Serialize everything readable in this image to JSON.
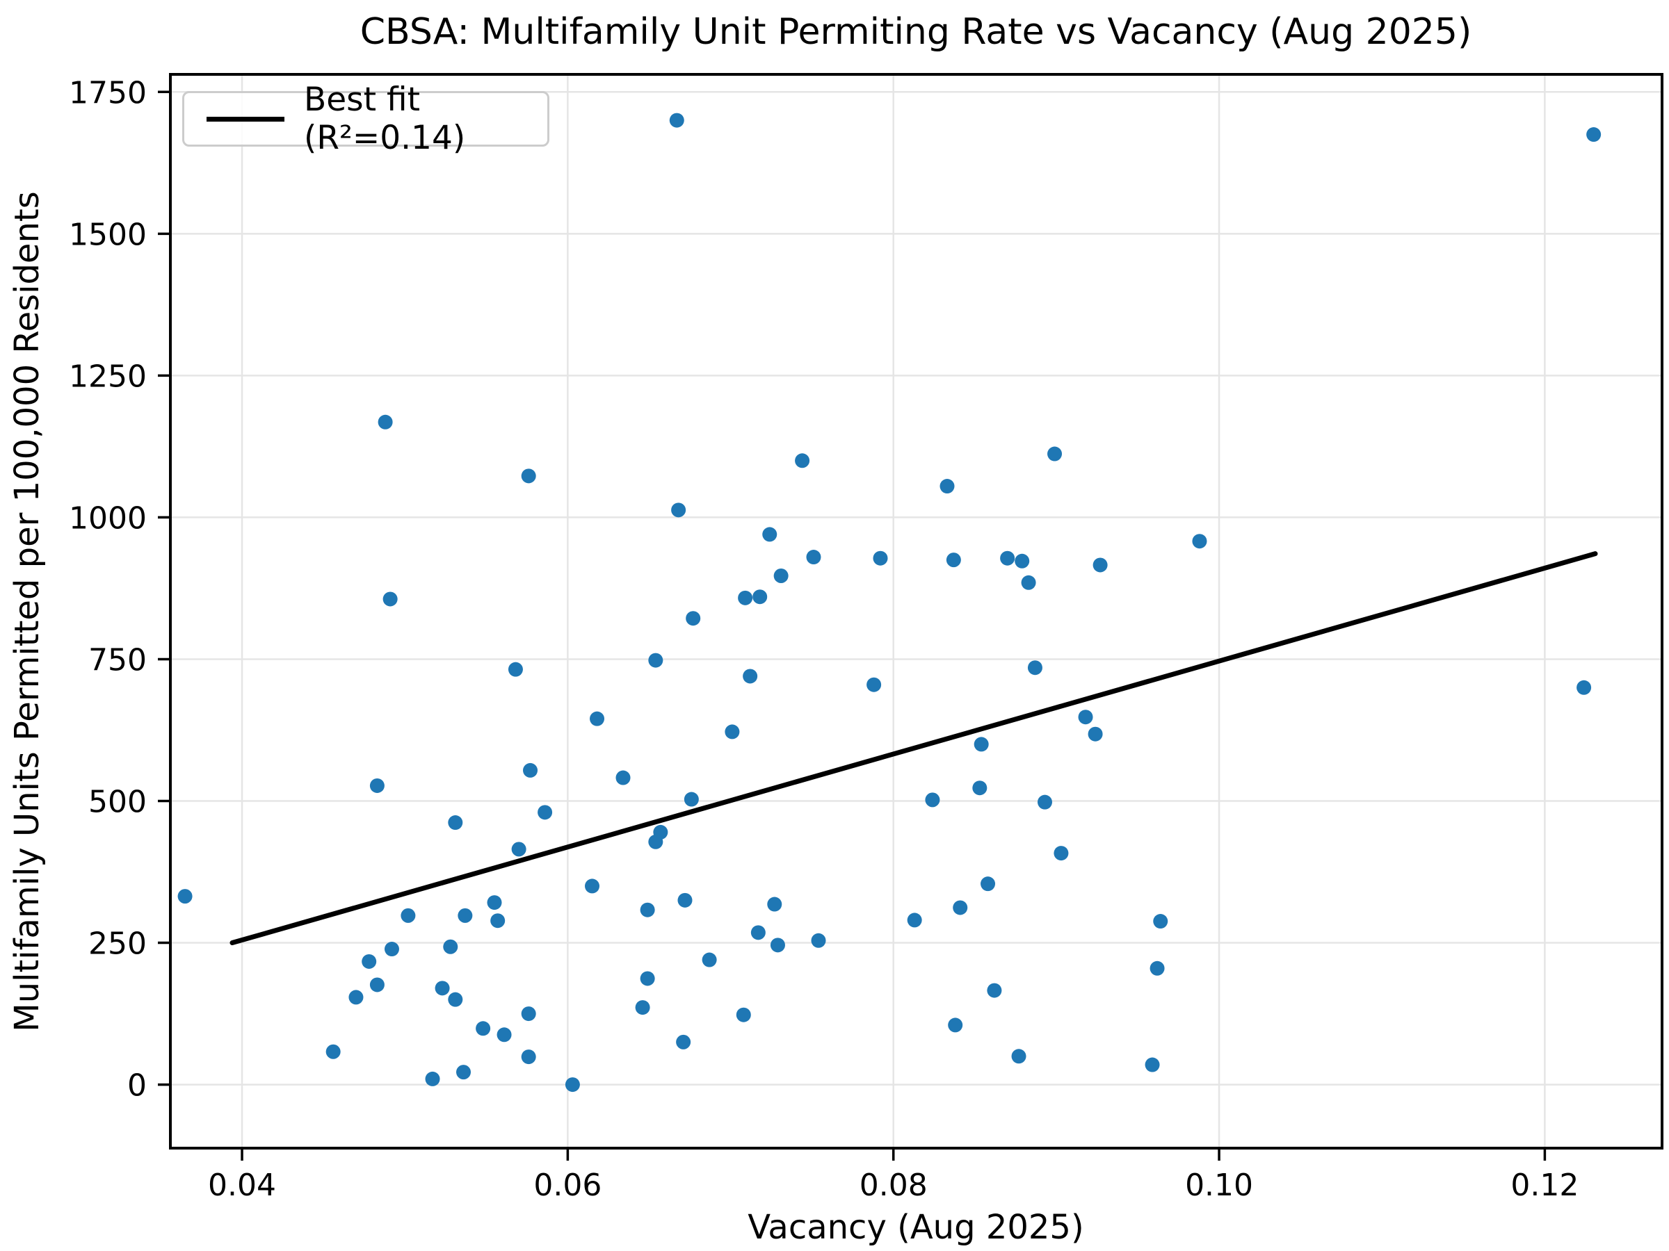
{
  "chart_data": {
    "type": "scatter",
    "title": "CBSA: Multifamily Unit Permiting Rate vs Vacancy (Aug 2025)",
    "xlabel": "Vacancy (Aug 2025)",
    "ylabel": "Multifamily Units Permitted per 100,000 Residents",
    "xlim": [
      0.0356,
      0.1272
    ],
    "ylim": [
      -112,
      1781
    ],
    "grid": true,
    "legend_position": "upper left",
    "x_ticks": [
      0.04,
      0.06,
      0.08,
      0.1,
      0.12
    ],
    "x_tick_labels": [
      "0.04",
      "0.06",
      "0.08",
      "0.10",
      "0.12"
    ],
    "y_ticks": [
      0,
      250,
      500,
      750,
      1000,
      1250,
      1500,
      1750
    ],
    "y_tick_labels": [
      "0",
      "250",
      "500",
      "750",
      "1000",
      "1250",
      "1500",
      "1750"
    ],
    "colors": {
      "point": "#1f77b4",
      "line": "#000000",
      "grid": "#e5e5e5",
      "spine": "#000000"
    },
    "marker_radius": 10.5,
    "best_fit": {
      "label": "Best fit (R²=0.14)",
      "r_squared": 0.14,
      "x1": 0.0394,
      "y1": 250,
      "x2": 0.1231,
      "y2": 936
    },
    "points": [
      [
        0.0667,
        1700
      ],
      [
        0.123,
        1675
      ],
      [
        0.0488,
        1168
      ],
      [
        0.0899,
        1112
      ],
      [
        0.0744,
        1100
      ],
      [
        0.0576,
        1073
      ],
      [
        0.0833,
        1055
      ],
      [
        0.0668,
        1013
      ],
      [
        0.0724,
        970
      ],
      [
        0.0988,
        958
      ],
      [
        0.0751,
        930
      ],
      [
        0.087,
        928
      ],
      [
        0.0792,
        928
      ],
      [
        0.0837,
        925
      ],
      [
        0.0879,
        923
      ],
      [
        0.0927,
        916
      ],
      [
        0.0731,
        897
      ],
      [
        0.0883,
        885
      ],
      [
        0.0718,
        860
      ],
      [
        0.0709,
        858
      ],
      [
        0.0491,
        856
      ],
      [
        0.0677,
        822
      ],
      [
        0.0654,
        748
      ],
      [
        0.0887,
        735
      ],
      [
        0.0568,
        732
      ],
      [
        0.0712,
        720
      ],
      [
        0.0788,
        705
      ],
      [
        0.1224,
        700
      ],
      [
        0.0918,
        648
      ],
      [
        0.0618,
        645
      ],
      [
        0.0701,
        622
      ],
      [
        0.0924,
        618
      ],
      [
        0.0854,
        600
      ],
      [
        0.0577,
        554
      ],
      [
        0.0634,
        541
      ],
      [
        0.0483,
        527
      ],
      [
        0.0853,
        523
      ],
      [
        0.0676,
        503
      ],
      [
        0.0824,
        502
      ],
      [
        0.0893,
        498
      ],
      [
        0.0586,
        480
      ],
      [
        0.0531,
        462
      ],
      [
        0.0657,
        445
      ],
      [
        0.0654,
        428
      ],
      [
        0.057,
        415
      ],
      [
        0.0903,
        408
      ],
      [
        0.0615,
        350
      ],
      [
        0.0858,
        354
      ],
      [
        0.0365,
        332
      ],
      [
        0.0672,
        325
      ],
      [
        0.0555,
        321
      ],
      [
        0.0727,
        318
      ],
      [
        0.0841,
        312
      ],
      [
        0.0649,
        308
      ],
      [
        0.0502,
        298
      ],
      [
        0.0537,
        298
      ],
      [
        0.0557,
        289
      ],
      [
        0.0813,
        290
      ],
      [
        0.0964,
        288
      ],
      [
        0.0717,
        268
      ],
      [
        0.0754,
        254
      ],
      [
        0.0729,
        246
      ],
      [
        0.0528,
        243
      ],
      [
        0.0492,
        239
      ],
      [
        0.0687,
        220
      ],
      [
        0.0478,
        217
      ],
      [
        0.0962,
        205
      ],
      [
        0.0649,
        187
      ],
      [
        0.0483,
        176
      ],
      [
        0.0523,
        170
      ],
      [
        0.0862,
        166
      ],
      [
        0.047,
        154
      ],
      [
        0.0531,
        150
      ],
      [
        0.0646,
        136
      ],
      [
        0.0576,
        125
      ],
      [
        0.0708,
        123
      ],
      [
        0.0838,
        105
      ],
      [
        0.0548,
        99
      ],
      [
        0.0561,
        88
      ],
      [
        0.0671,
        75
      ],
      [
        0.0456,
        58
      ],
      [
        0.0877,
        50
      ],
      [
        0.0576,
        49
      ],
      [
        0.0959,
        35
      ],
      [
        0.0536,
        22
      ],
      [
        0.0517,
        10
      ],
      [
        0.0603,
        0
      ]
    ]
  }
}
